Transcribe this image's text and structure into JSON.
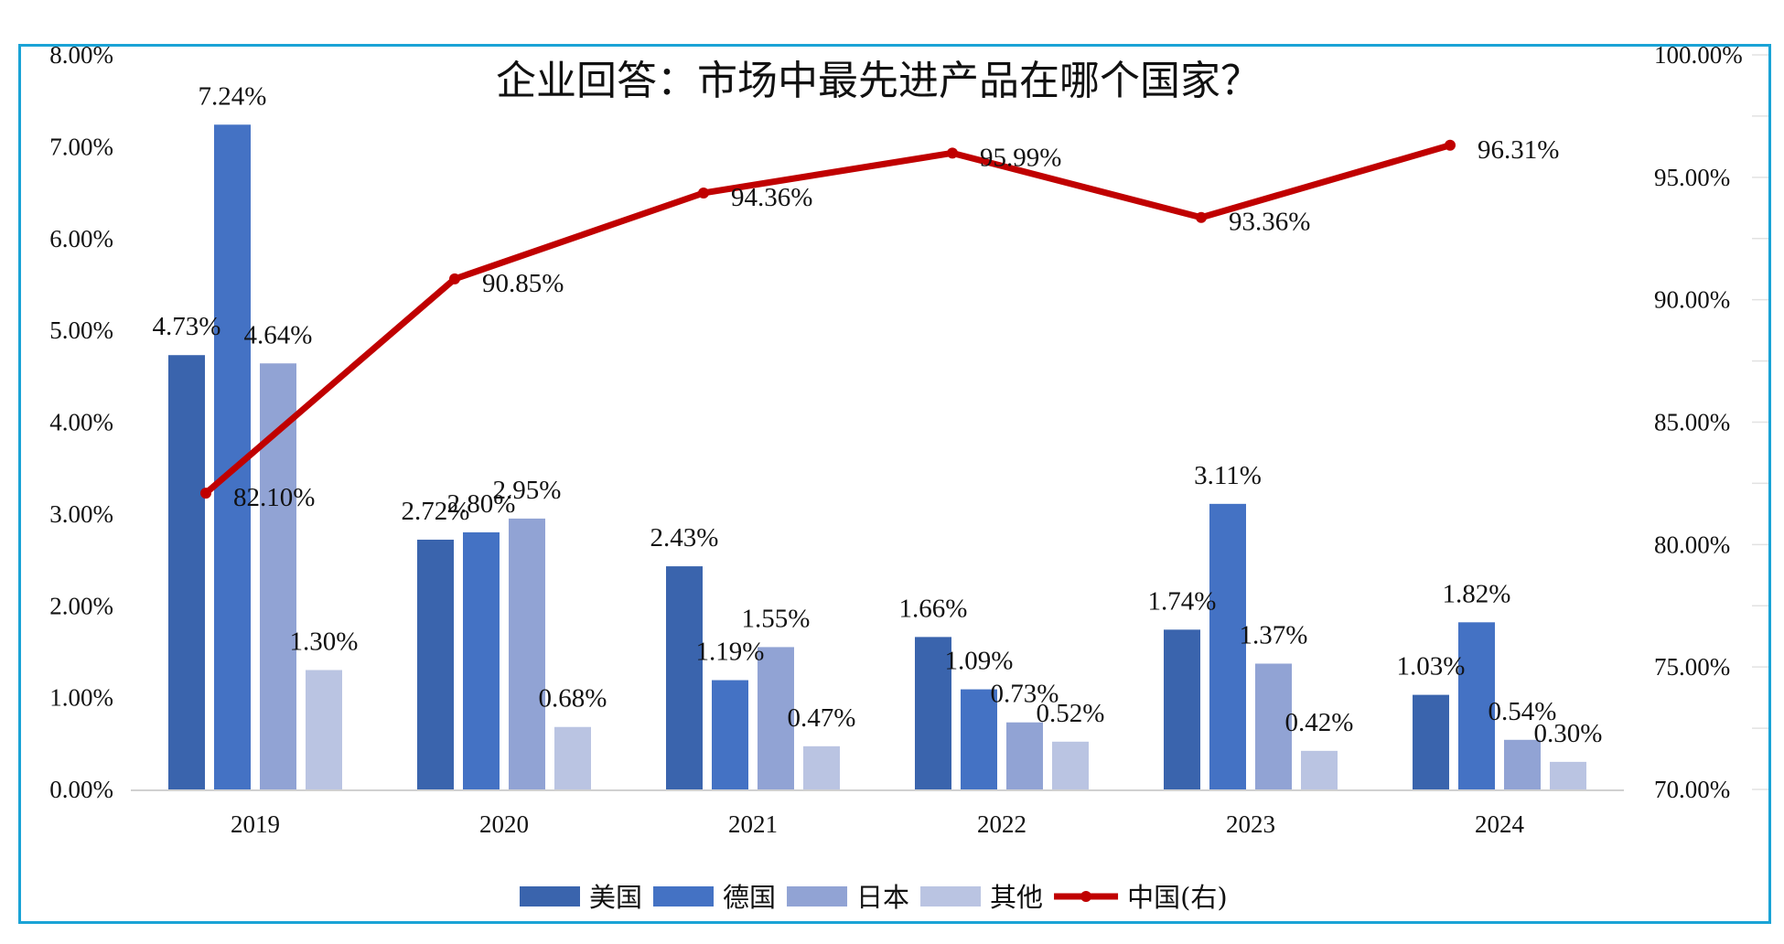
{
  "chart_data": {
    "type": "bar",
    "title": "企业回答：市场中最先进产品在哪个国家？",
    "categories": [
      "2019",
      "2020",
      "2021",
      "2022",
      "2023",
      "2024"
    ],
    "series": [
      {
        "name": "美国",
        "axis": "left",
        "type": "bar",
        "color": "#3a64ad",
        "values": [
          4.73,
          2.72,
          2.43,
          1.66,
          1.74,
          1.03
        ],
        "labels": [
          "4.73%",
          "2.72%",
          "2.43%",
          "1.66%",
          "1.74%",
          "1.03%"
        ]
      },
      {
        "name": "德国",
        "axis": "left",
        "type": "bar",
        "color": "#4472c4",
        "values": [
          7.24,
          2.8,
          1.19,
          1.09,
          3.11,
          1.82
        ],
        "labels": [
          "7.24%",
          "2.80%",
          "1.19%",
          "1.09%",
          "3.11%",
          "1.82%"
        ]
      },
      {
        "name": "日本",
        "axis": "left",
        "type": "bar",
        "color": "#91a3d4",
        "values": [
          4.64,
          2.95,
          1.55,
          0.73,
          1.37,
          0.54
        ],
        "labels": [
          "4.64%",
          "2.95%",
          "1.55%",
          "0.73%",
          "1.37%",
          "0.54%"
        ]
      },
      {
        "name": "其他",
        "axis": "left",
        "type": "bar",
        "color": "#bac4e2",
        "values": [
          1.3,
          0.68,
          0.47,
          0.52,
          0.42,
          0.3
        ],
        "labels": [
          "1.30%",
          "0.68%",
          "0.47%",
          "0.52%",
          "0.42%",
          "0.30%"
        ]
      },
      {
        "name": "中国(右)",
        "axis": "right",
        "type": "line",
        "color": "#c00000",
        "values": [
          82.1,
          90.85,
          94.36,
          95.99,
          93.36,
          96.31
        ],
        "labels": [
          "82.10%",
          "90.85%",
          "94.36%",
          "95.99%",
          "93.36%",
          "96.31%"
        ]
      }
    ],
    "y_left": {
      "min": 0,
      "max": 8,
      "step": 1,
      "tick_labels": [
        "0.00%",
        "1.00%",
        "2.00%",
        "3.00%",
        "4.00%",
        "5.00%",
        "6.00%",
        "7.00%",
        "8.00%"
      ]
    },
    "y_right": {
      "min": 70,
      "max": 100,
      "step": 5,
      "tick_labels": [
        "70.00%",
        "75.00%",
        "80.00%",
        "85.00%",
        "90.00%",
        "95.00%",
        "100.00%"
      ]
    },
    "xlabel": "",
    "ylabel": "",
    "grid": false,
    "legend": "bottom",
    "frame_color": "#1aa3d6"
  }
}
